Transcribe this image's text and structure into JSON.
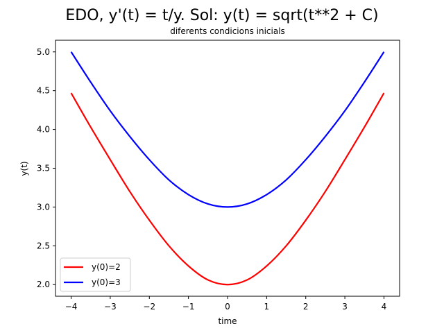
{
  "chart_data": {
    "type": "line",
    "title": "EDO, y'(t) = t/y. Sol: y(t) = sqrt(t**2 + C)",
    "subtitle": "diferents condicions inicials",
    "xlabel": "time",
    "ylabel": "y(t)",
    "xlim": [
      -4.4,
      4.4
    ],
    "ylim": [
      1.85,
      5.15
    ],
    "xticks": [
      -4,
      -3,
      -2,
      -1,
      0,
      1,
      2,
      3,
      4
    ],
    "xtick_labels": [
      "−4",
      "−3",
      "−2",
      "−1",
      "0",
      "1",
      "2",
      "3",
      "4"
    ],
    "yticks": [
      2.0,
      2.5,
      3.0,
      3.5,
      4.0,
      4.5,
      5.0
    ],
    "ytick_labels": [
      "2.0",
      "2.5",
      "3.0",
      "3.5",
      "4.0",
      "4.5",
      "5.0"
    ],
    "grid": false,
    "legend_position": "lower-left",
    "series": [
      {
        "name": "y(0)=2",
        "color": "#ff0000",
        "x": [
          -4,
          -3.5,
          -3,
          -2.5,
          -2,
          -1.5,
          -1,
          -0.5,
          0,
          0.5,
          1,
          1.5,
          2,
          2.5,
          3,
          3.5,
          4
        ],
        "y": [
          4.47,
          4.03,
          3.61,
          3.2,
          2.83,
          2.5,
          2.24,
          2.06,
          2.0,
          2.06,
          2.24,
          2.5,
          2.83,
          3.2,
          3.61,
          4.03,
          4.47
        ]
      },
      {
        "name": "y(0)=3",
        "color": "#0000ff",
        "x": [
          -4,
          -3.5,
          -3,
          -2.5,
          -2,
          -1.5,
          -1,
          -0.5,
          0,
          0.5,
          1,
          1.5,
          2,
          2.5,
          3,
          3.5,
          4
        ],
        "y": [
          5.0,
          4.61,
          4.24,
          3.91,
          3.61,
          3.35,
          3.16,
          3.04,
          3.0,
          3.04,
          3.16,
          3.35,
          3.61,
          3.91,
          4.24,
          4.61,
          5.0
        ]
      }
    ]
  }
}
